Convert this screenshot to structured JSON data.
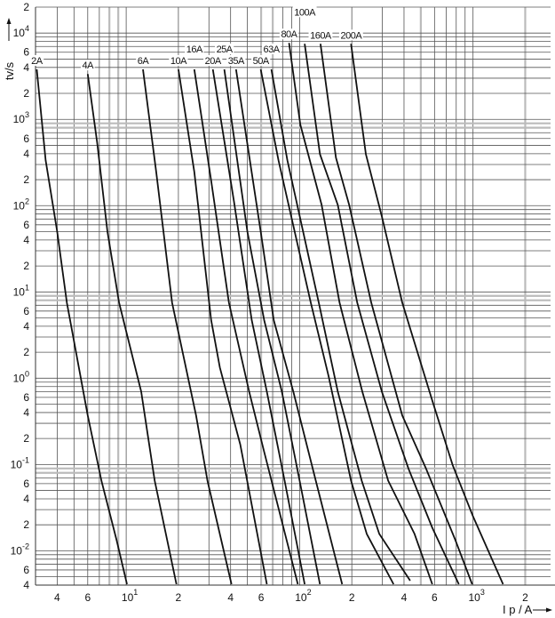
{
  "chart_data": {
    "type": "line",
    "title": "",
    "xlabel": "I p / A",
    "ylabel": "tv/s",
    "xscale": "log",
    "yscale": "log",
    "xlim": [
      3,
      2800
    ],
    "ylim": [
      0.004,
      20000
    ],
    "grid": true,
    "legend": "none (curve labels at top of each curve)",
    "x_tick_labels": [
      {
        "value": 4,
        "base": "4",
        "exp": ""
      },
      {
        "value": 6,
        "base": "6",
        "exp": ""
      },
      {
        "value": 10,
        "base": "10",
        "exp": "1"
      },
      {
        "value": 20,
        "base": "2",
        "exp": ""
      },
      {
        "value": 40,
        "base": "4",
        "exp": ""
      },
      {
        "value": 60,
        "base": "6",
        "exp": ""
      },
      {
        "value": 100,
        "base": "10",
        "exp": "2"
      },
      {
        "value": 200,
        "base": "2",
        "exp": ""
      },
      {
        "value": 400,
        "base": "4",
        "exp": ""
      },
      {
        "value": 600,
        "base": "6",
        "exp": ""
      },
      {
        "value": 1000,
        "base": "10",
        "exp": "3"
      },
      {
        "value": 2000,
        "base": "2",
        "exp": ""
      }
    ],
    "y_tick_labels": [
      {
        "value": 20000,
        "base": "2",
        "exp": ""
      },
      {
        "value": 10000,
        "base": "10",
        "exp": "4"
      },
      {
        "value": 6000,
        "base": "6",
        "exp": ""
      },
      {
        "value": 4000,
        "base": "4",
        "exp": ""
      },
      {
        "value": 2000,
        "base": "2",
        "exp": ""
      },
      {
        "value": 1000,
        "base": "10",
        "exp": "3"
      },
      {
        "value": 600,
        "base": "6",
        "exp": ""
      },
      {
        "value": 400,
        "base": "4",
        "exp": ""
      },
      {
        "value": 200,
        "base": "2",
        "exp": ""
      },
      {
        "value": 100,
        "base": "10",
        "exp": "2"
      },
      {
        "value": 60,
        "base": "6",
        "exp": ""
      },
      {
        "value": 40,
        "base": "4",
        "exp": ""
      },
      {
        "value": 20,
        "base": "2",
        "exp": ""
      },
      {
        "value": 10,
        "base": "10",
        "exp": "1"
      },
      {
        "value": 6,
        "base": "6",
        "exp": ""
      },
      {
        "value": 4,
        "base": "4",
        "exp": ""
      },
      {
        "value": 2,
        "base": "2",
        "exp": ""
      },
      {
        "value": 1,
        "base": "10",
        "exp": "0"
      },
      {
        "value": 0.6,
        "base": "6",
        "exp": ""
      },
      {
        "value": 0.4,
        "base": "4",
        "exp": ""
      },
      {
        "value": 0.2,
        "base": "2",
        "exp": ""
      },
      {
        "value": 0.1,
        "base": "10",
        "exp": "-1"
      },
      {
        "value": 0.06,
        "base": "6",
        "exp": ""
      },
      {
        "value": 0.04,
        "base": "4",
        "exp": ""
      },
      {
        "value": 0.02,
        "base": "2",
        "exp": ""
      },
      {
        "value": 0.01,
        "base": "10",
        "exp": "-2"
      },
      {
        "value": 0.006,
        "base": "6",
        "exp": ""
      },
      {
        "value": 0.004,
        "base": "4",
        "exp": ""
      }
    ],
    "highlight_gridlines_x": [
      8,
      9,
      15,
      60,
      70,
      500,
      2000
    ],
    "colors": {
      "curve": "#111111",
      "grid": "#555555",
      "grid_highlight": "#bbbbbb"
    },
    "series": [
      {
        "name": "2A",
        "points": [
          [
            3.05,
            3800
          ],
          [
            3.43,
            336
          ],
          [
            4.0,
            50
          ],
          [
            4.55,
            7.5
          ],
          [
            6.0,
            0.37
          ],
          [
            7.2,
            0.065
          ],
          [
            8.8,
            0.0133
          ],
          [
            10.1,
            0.0041
          ]
        ]
      },
      {
        "name": "4A",
        "points": [
          [
            6.0,
            3360
          ],
          [
            6.8,
            540
          ],
          [
            7.8,
            50
          ],
          [
            9.1,
            7.5
          ],
          [
            12.2,
            0.7
          ],
          [
            14.6,
            0.065
          ],
          [
            19.5,
            0.0041
          ]
        ]
      },
      {
        "name": "6A",
        "points": [
          [
            12.5,
            3800
          ],
          [
            14.9,
            247
          ],
          [
            18.4,
            7.5
          ],
          [
            25.3,
            0.37
          ],
          [
            29.4,
            0.065
          ],
          [
            40.5,
            0.0041
          ]
        ]
      },
      {
        "name": "10A",
        "points": [
          [
            20,
            3800
          ],
          [
            24.7,
            247
          ],
          [
            30.9,
            4.7
          ],
          [
            34.7,
            1.33
          ],
          [
            45.5,
            0.17
          ],
          [
            64.7,
            0.0041
          ]
        ]
      },
      {
        "name": "16A",
        "points": [
          [
            24.7,
            3800
          ],
          [
            30.9,
            194
          ],
          [
            39.1,
            7.5
          ],
          [
            51.2,
            0.7
          ],
          [
            62.5,
            0.14
          ],
          [
            97.7,
            0.0041
          ]
        ]
      },
      {
        "name": "20A",
        "points": [
          [
            31.6,
            3800
          ],
          [
            41.9,
            110
          ],
          [
            53,
            4.7
          ],
          [
            64.7,
            0.7
          ],
          [
            81.9,
            0.065
          ],
          [
            107,
            0.0041
          ]
        ]
      },
      {
        "name": "25A",
        "points": [
          [
            36.8,
            3800
          ],
          [
            50,
            50
          ],
          [
            62.5,
            4.7
          ],
          [
            79,
            0.7
          ],
          [
            100,
            0.065
          ],
          [
            131,
            0.0041
          ]
        ]
      },
      {
        "name": "35A",
        "points": [
          [
            43,
            3800
          ],
          [
            59.7,
            50
          ],
          [
            71,
            4.7
          ],
          [
            92,
            0.7
          ],
          [
            124,
            0.065
          ],
          [
            176,
            0.0041
          ]
        ]
      },
      {
        "name": "50A",
        "points": [
          [
            59.7,
            3800
          ],
          [
            75.5,
            336
          ],
          [
            116,
            7.5
          ],
          [
            147,
            1.05
          ],
          [
            198,
            0.065
          ],
          [
            244,
            0.0157
          ],
          [
            348,
            0.0041
          ]
        ]
      },
      {
        "name": "63A",
        "points": [
          [
            68.7,
            3800
          ],
          [
            85,
            336
          ],
          [
            129,
            7.5
          ],
          [
            166,
            0.7
          ],
          [
            228,
            0.065
          ],
          [
            288,
            0.0157
          ],
          [
            434,
            0.0045
          ]
        ]
      },
      {
        "name": "80A",
        "points": [
          [
            86.9,
            7700
          ],
          [
            101,
            870
          ],
          [
            134,
            102
          ],
          [
            170,
            7.5
          ],
          [
            230,
            0.7
          ],
          [
            324,
            0.065
          ],
          [
            460,
            0.0157
          ],
          [
            582,
            0.0041
          ]
        ]
      },
      {
        "name": "100A",
        "points": [
          [
            107,
            7500
          ],
          [
            131,
            396
          ],
          [
            166,
            102
          ],
          [
            215,
            7.5
          ],
          [
            298,
            0.7
          ],
          [
            425,
            0.089
          ],
          [
            582,
            0.0185
          ],
          [
            828,
            0.0041
          ]
        ]
      },
      {
        "name": "160A",
        "points": [
          [
            132,
            7500
          ],
          [
            162,
            360
          ],
          [
            193,
            102
          ],
          [
            259,
            7.5
          ],
          [
            391,
            0.37
          ],
          [
            537,
            0.089
          ],
          [
            791,
            0.0133
          ],
          [
            988,
            0.0041
          ]
        ]
      },
      {
        "name": "200A",
        "points": [
          [
            198,
            7500
          ],
          [
            241,
            396
          ],
          [
            298,
            75
          ],
          [
            391,
            7.5
          ],
          [
            582,
            0.55
          ],
          [
            764,
            0.098
          ],
          [
            1000,
            0.025
          ],
          [
            1490,
            0.0041
          ]
        ]
      }
    ]
  }
}
